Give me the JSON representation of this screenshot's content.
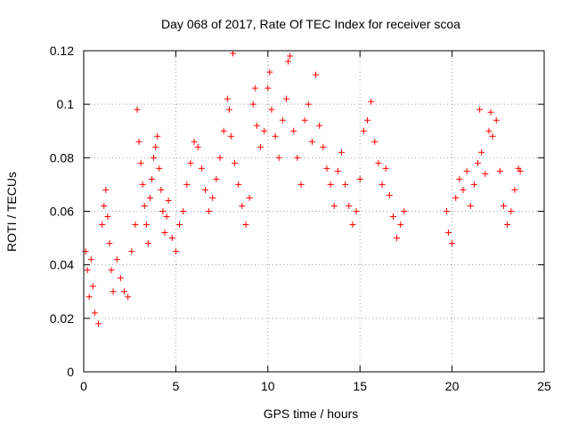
{
  "chart_data": {
    "type": "scatter",
    "title": "Day 068 of 2017, Rate Of TEC Index for receiver scoa",
    "xlabel": "GPS time / hours",
    "ylabel": "ROTI / TECUs",
    "xlim": [
      0,
      25
    ],
    "ylim": [
      0,
      0.12
    ],
    "xticks": [
      0,
      5,
      10,
      15,
      20,
      25
    ],
    "xtick_labels": [
      "0",
      "5",
      "10",
      "15",
      "20",
      "25"
    ],
    "yticks": [
      0,
      0.02,
      0.04,
      0.06,
      0.08,
      0.1,
      0.12
    ],
    "ytick_labels": [
      "0",
      "0.02",
      "0.04",
      "0.06",
      "0.08",
      "0.1",
      "0.12"
    ],
    "grid": true,
    "legend": "none",
    "marker": "plus",
    "color": "#ff0000",
    "series": [
      {
        "points": [
          [
            0.1,
            0.045
          ],
          [
            0.2,
            0.038
          ],
          [
            0.3,
            0.028
          ],
          [
            0.4,
            0.042
          ],
          [
            0.5,
            0.032
          ],
          [
            0.6,
            0.022
          ],
          [
            0.8,
            0.018
          ],
          [
            1.0,
            0.055
          ],
          [
            1.1,
            0.062
          ],
          [
            1.2,
            0.068
          ],
          [
            1.3,
            0.058
          ],
          [
            1.4,
            0.048
          ],
          [
            1.5,
            0.038
          ],
          [
            1.6,
            0.03
          ],
          [
            1.8,
            0.042
          ],
          [
            2.0,
            0.035
          ],
          [
            2.2,
            0.03
          ],
          [
            2.4,
            0.028
          ],
          [
            2.6,
            0.045
          ],
          [
            2.8,
            0.055
          ],
          [
            2.9,
            0.098
          ],
          [
            3.0,
            0.086
          ],
          [
            3.1,
            0.078
          ],
          [
            3.2,
            0.07
          ],
          [
            3.3,
            0.062
          ],
          [
            3.4,
            0.055
          ],
          [
            3.5,
            0.048
          ],
          [
            3.6,
            0.065
          ],
          [
            3.7,
            0.072
          ],
          [
            3.8,
            0.08
          ],
          [
            3.9,
            0.084
          ],
          [
            4.0,
            0.088
          ],
          [
            4.1,
            0.076
          ],
          [
            4.2,
            0.068
          ],
          [
            4.3,
            0.06
          ],
          [
            4.4,
            0.052
          ],
          [
            4.5,
            0.058
          ],
          [
            4.6,
            0.064
          ],
          [
            4.8,
            0.05
          ],
          [
            5.0,
            0.045
          ],
          [
            5.2,
            0.055
          ],
          [
            5.4,
            0.06
          ],
          [
            5.6,
            0.07
          ],
          [
            5.8,
            0.078
          ],
          [
            6.0,
            0.086
          ],
          [
            6.2,
            0.084
          ],
          [
            6.4,
            0.076
          ],
          [
            6.6,
            0.068
          ],
          [
            6.8,
            0.06
          ],
          [
            7.0,
            0.065
          ],
          [
            7.2,
            0.072
          ],
          [
            7.4,
            0.08
          ],
          [
            7.6,
            0.09
          ],
          [
            7.8,
            0.102
          ],
          [
            7.9,
            0.098
          ],
          [
            8.0,
            0.088
          ],
          [
            8.1,
            0.119
          ],
          [
            8.2,
            0.078
          ],
          [
            8.4,
            0.07
          ],
          [
            8.6,
            0.062
          ],
          [
            8.8,
            0.055
          ],
          [
            9.0,
            0.065
          ],
          [
            9.2,
            0.1
          ],
          [
            9.3,
            0.106
          ],
          [
            9.4,
            0.092
          ],
          [
            9.6,
            0.084
          ],
          [
            9.8,
            0.09
          ],
          [
            10.0,
            0.106
          ],
          [
            10.1,
            0.112
          ],
          [
            10.2,
            0.098
          ],
          [
            10.4,
            0.088
          ],
          [
            10.6,
            0.08
          ],
          [
            10.8,
            0.094
          ],
          [
            11.0,
            0.102
          ],
          [
            11.1,
            0.116
          ],
          [
            11.2,
            0.118
          ],
          [
            11.4,
            0.09
          ],
          [
            11.6,
            0.08
          ],
          [
            11.8,
            0.07
          ],
          [
            12.0,
            0.094
          ],
          [
            12.2,
            0.1
          ],
          [
            12.4,
            0.086
          ],
          [
            12.6,
            0.111
          ],
          [
            12.8,
            0.092
          ],
          [
            13.0,
            0.084
          ],
          [
            13.2,
            0.076
          ],
          [
            13.4,
            0.07
          ],
          [
            13.6,
            0.062
          ],
          [
            13.8,
            0.075
          ],
          [
            14.0,
            0.082
          ],
          [
            14.2,
            0.07
          ],
          [
            14.4,
            0.062
          ],
          [
            14.6,
            0.055
          ],
          [
            14.8,
            0.06
          ],
          [
            15.0,
            0.072
          ],
          [
            15.2,
            0.09
          ],
          [
            15.4,
            0.094
          ],
          [
            15.6,
            0.101
          ],
          [
            15.8,
            0.086
          ],
          [
            16.0,
            0.078
          ],
          [
            16.2,
            0.07
          ],
          [
            16.4,
            0.076
          ],
          [
            16.6,
            0.066
          ],
          [
            16.8,
            0.058
          ],
          [
            17.0,
            0.05
          ],
          [
            17.2,
            0.055
          ],
          [
            17.4,
            0.06
          ],
          [
            19.7,
            0.06
          ],
          [
            19.8,
            0.052
          ],
          [
            20.0,
            0.048
          ],
          [
            20.2,
            0.065
          ],
          [
            20.4,
            0.072
          ],
          [
            20.6,
            0.068
          ],
          [
            20.8,
            0.075
          ],
          [
            21.0,
            0.062
          ],
          [
            21.2,
            0.07
          ],
          [
            21.4,
            0.078
          ],
          [
            21.5,
            0.098
          ],
          [
            21.6,
            0.082
          ],
          [
            21.8,
            0.074
          ],
          [
            22.0,
            0.09
          ],
          [
            22.1,
            0.097
          ],
          [
            22.2,
            0.088
          ],
          [
            22.4,
            0.094
          ],
          [
            22.6,
            0.075
          ],
          [
            22.8,
            0.062
          ],
          [
            23.0,
            0.055
          ],
          [
            23.2,
            0.06
          ],
          [
            23.4,
            0.068
          ],
          [
            23.6,
            0.076
          ],
          [
            23.7,
            0.075
          ]
        ]
      }
    ]
  }
}
